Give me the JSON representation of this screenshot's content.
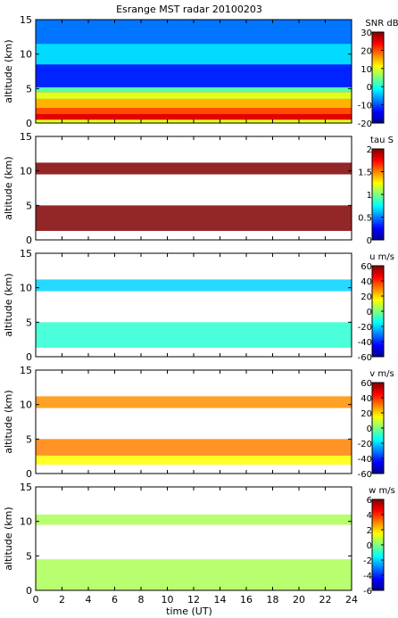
{
  "title": "Esrange MST radar 20100203",
  "xlabel": "time (UT)",
  "ylabel": "altitude (km)",
  "chart_data": [
    {
      "type": "heatmap",
      "variable": "SNR",
      "colorbar_label": "SNR dB",
      "clim": [
        -20,
        30
      ],
      "colorbar_ticks": [
        -20,
        -10,
        0,
        10,
        20,
        30
      ],
      "xlim": [
        0,
        24
      ],
      "ylim": [
        0,
        15
      ],
      "xticks": [
        0,
        2,
        4,
        6,
        8,
        10,
        12,
        14,
        16,
        18,
        20,
        22,
        24
      ],
      "yticks": [
        0,
        5,
        10,
        15
      ],
      "x_tick_labels_shown": false,
      "layers": [
        {
          "alt_from": 0.0,
          "alt_to": 0.5,
          "value": 10
        },
        {
          "alt_from": 0.5,
          "alt_to": 1.3,
          "value": 25
        },
        {
          "alt_from": 1.3,
          "alt_to": 2.2,
          "value": 20
        },
        {
          "alt_from": 2.2,
          "alt_to": 3.5,
          "value": 15
        },
        {
          "alt_from": 3.5,
          "alt_to": 4.5,
          "value": 10
        },
        {
          "alt_from": 4.5,
          "alt_to": 5.2,
          "value": 3
        },
        {
          "alt_from": 5.2,
          "alt_to": 8.5,
          "value": -12
        },
        {
          "alt_from": 8.5,
          "alt_to": 11.5,
          "value": -3
        },
        {
          "alt_from": 11.5,
          "alt_to": 15.0,
          "value": -8
        }
      ],
      "colors": {
        "colormap": "jet"
      }
    },
    {
      "type": "heatmap",
      "variable": "tau",
      "colorbar_label": "tau S",
      "clim": [
        0,
        2
      ],
      "colorbar_ticks": [
        0,
        0.5,
        1,
        1.5,
        2
      ],
      "xlim": [
        0,
        24
      ],
      "ylim": [
        0,
        15
      ],
      "xticks": [
        0,
        2,
        4,
        6,
        8,
        10,
        12,
        14,
        16,
        18,
        20,
        22,
        24
      ],
      "yticks": [
        0,
        5,
        10,
        15
      ],
      "x_tick_labels_shown": false,
      "layers": [
        {
          "alt_from": 1.3,
          "alt_to": 5.0,
          "value": 2.0
        },
        {
          "alt_from": 9.5,
          "alt_to": 11.2,
          "value": 2.0
        }
      ],
      "colors": {
        "colormap": "jet"
      }
    },
    {
      "type": "heatmap",
      "variable": "u",
      "colorbar_label": "u m/s",
      "clim": [
        -60,
        60
      ],
      "colorbar_ticks": [
        -60,
        -40,
        -20,
        0,
        20,
        40,
        60
      ],
      "xlim": [
        0,
        24
      ],
      "ylim": [
        0,
        15
      ],
      "xticks": [
        0,
        2,
        4,
        6,
        8,
        10,
        12,
        14,
        16,
        18,
        20,
        22,
        24
      ],
      "yticks": [
        0,
        5,
        10,
        15
      ],
      "x_tick_labels_shown": false,
      "layers": [
        {
          "alt_from": 1.3,
          "alt_to": 5.0,
          "value": -10
        },
        {
          "alt_from": 9.5,
          "alt_to": 11.2,
          "value": -20
        }
      ],
      "colors": {
        "colormap": "jet"
      }
    },
    {
      "type": "heatmap",
      "variable": "v",
      "colorbar_label": "v m/s",
      "clim": [
        -60,
        60
      ],
      "colorbar_ticks": [
        -60,
        -40,
        -20,
        0,
        20,
        40,
        60
      ],
      "xlim": [
        0,
        24
      ],
      "ylim": [
        0,
        15
      ],
      "xticks": [
        0,
        2,
        4,
        6,
        8,
        10,
        12,
        14,
        16,
        18,
        20,
        22,
        24
      ],
      "yticks": [
        0,
        5,
        10,
        15
      ],
      "x_tick_labels_shown": false,
      "layers": [
        {
          "alt_from": 1.3,
          "alt_to": 2.6,
          "value": 15
        },
        {
          "alt_from": 2.6,
          "alt_to": 5.0,
          "value": 30
        },
        {
          "alt_from": 9.5,
          "alt_to": 11.2,
          "value": 28
        }
      ],
      "colors": {
        "colormap": "jet"
      }
    },
    {
      "type": "heatmap",
      "variable": "w",
      "colorbar_label": "w m/s",
      "clim": [
        -6,
        6
      ],
      "colorbar_ticks": [
        -6,
        -4,
        -2,
        0,
        2,
        4,
        6
      ],
      "xlim": [
        0,
        24
      ],
      "ylim": [
        0,
        15
      ],
      "xticks": [
        0,
        2,
        4,
        6,
        8,
        10,
        12,
        14,
        16,
        18,
        20,
        22,
        24
      ],
      "yticks": [
        0,
        5,
        10,
        15
      ],
      "x_tick_labels_shown": true,
      "layers": [
        {
          "alt_from": 0.0,
          "alt_to": 1.3,
          "value": 0.5
        },
        {
          "alt_from": 1.3,
          "alt_to": 4.5,
          "value": 0.5
        },
        {
          "alt_from": 9.5,
          "alt_to": 11.0,
          "value": 0.5
        }
      ],
      "colors": {
        "colormap": "jet"
      }
    }
  ]
}
